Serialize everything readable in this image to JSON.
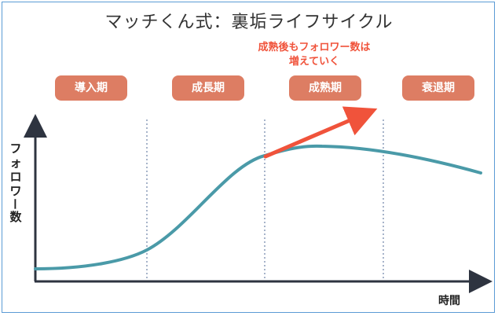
{
  "title": "マッチくん式：裏垢ライフサイクル",
  "annotation": {
    "line1": "成熟後もフォロワー数は",
    "line2": "増えていく"
  },
  "phases": [
    {
      "label": "導入期"
    },
    {
      "label": "成長期"
    },
    {
      "label": "成熟期"
    },
    {
      "label": "衰退期"
    }
  ],
  "axes": {
    "y_chars": [
      "フ",
      "ォ",
      "ロ",
      "ワ",
      "ー",
      "数"
    ],
    "x_label": "時間"
  },
  "colors": {
    "curve": "#4a9aa8",
    "arrow": "#f0533b",
    "phase_bg": "#dd7d63",
    "divider": "#8a9bb8"
  }
}
